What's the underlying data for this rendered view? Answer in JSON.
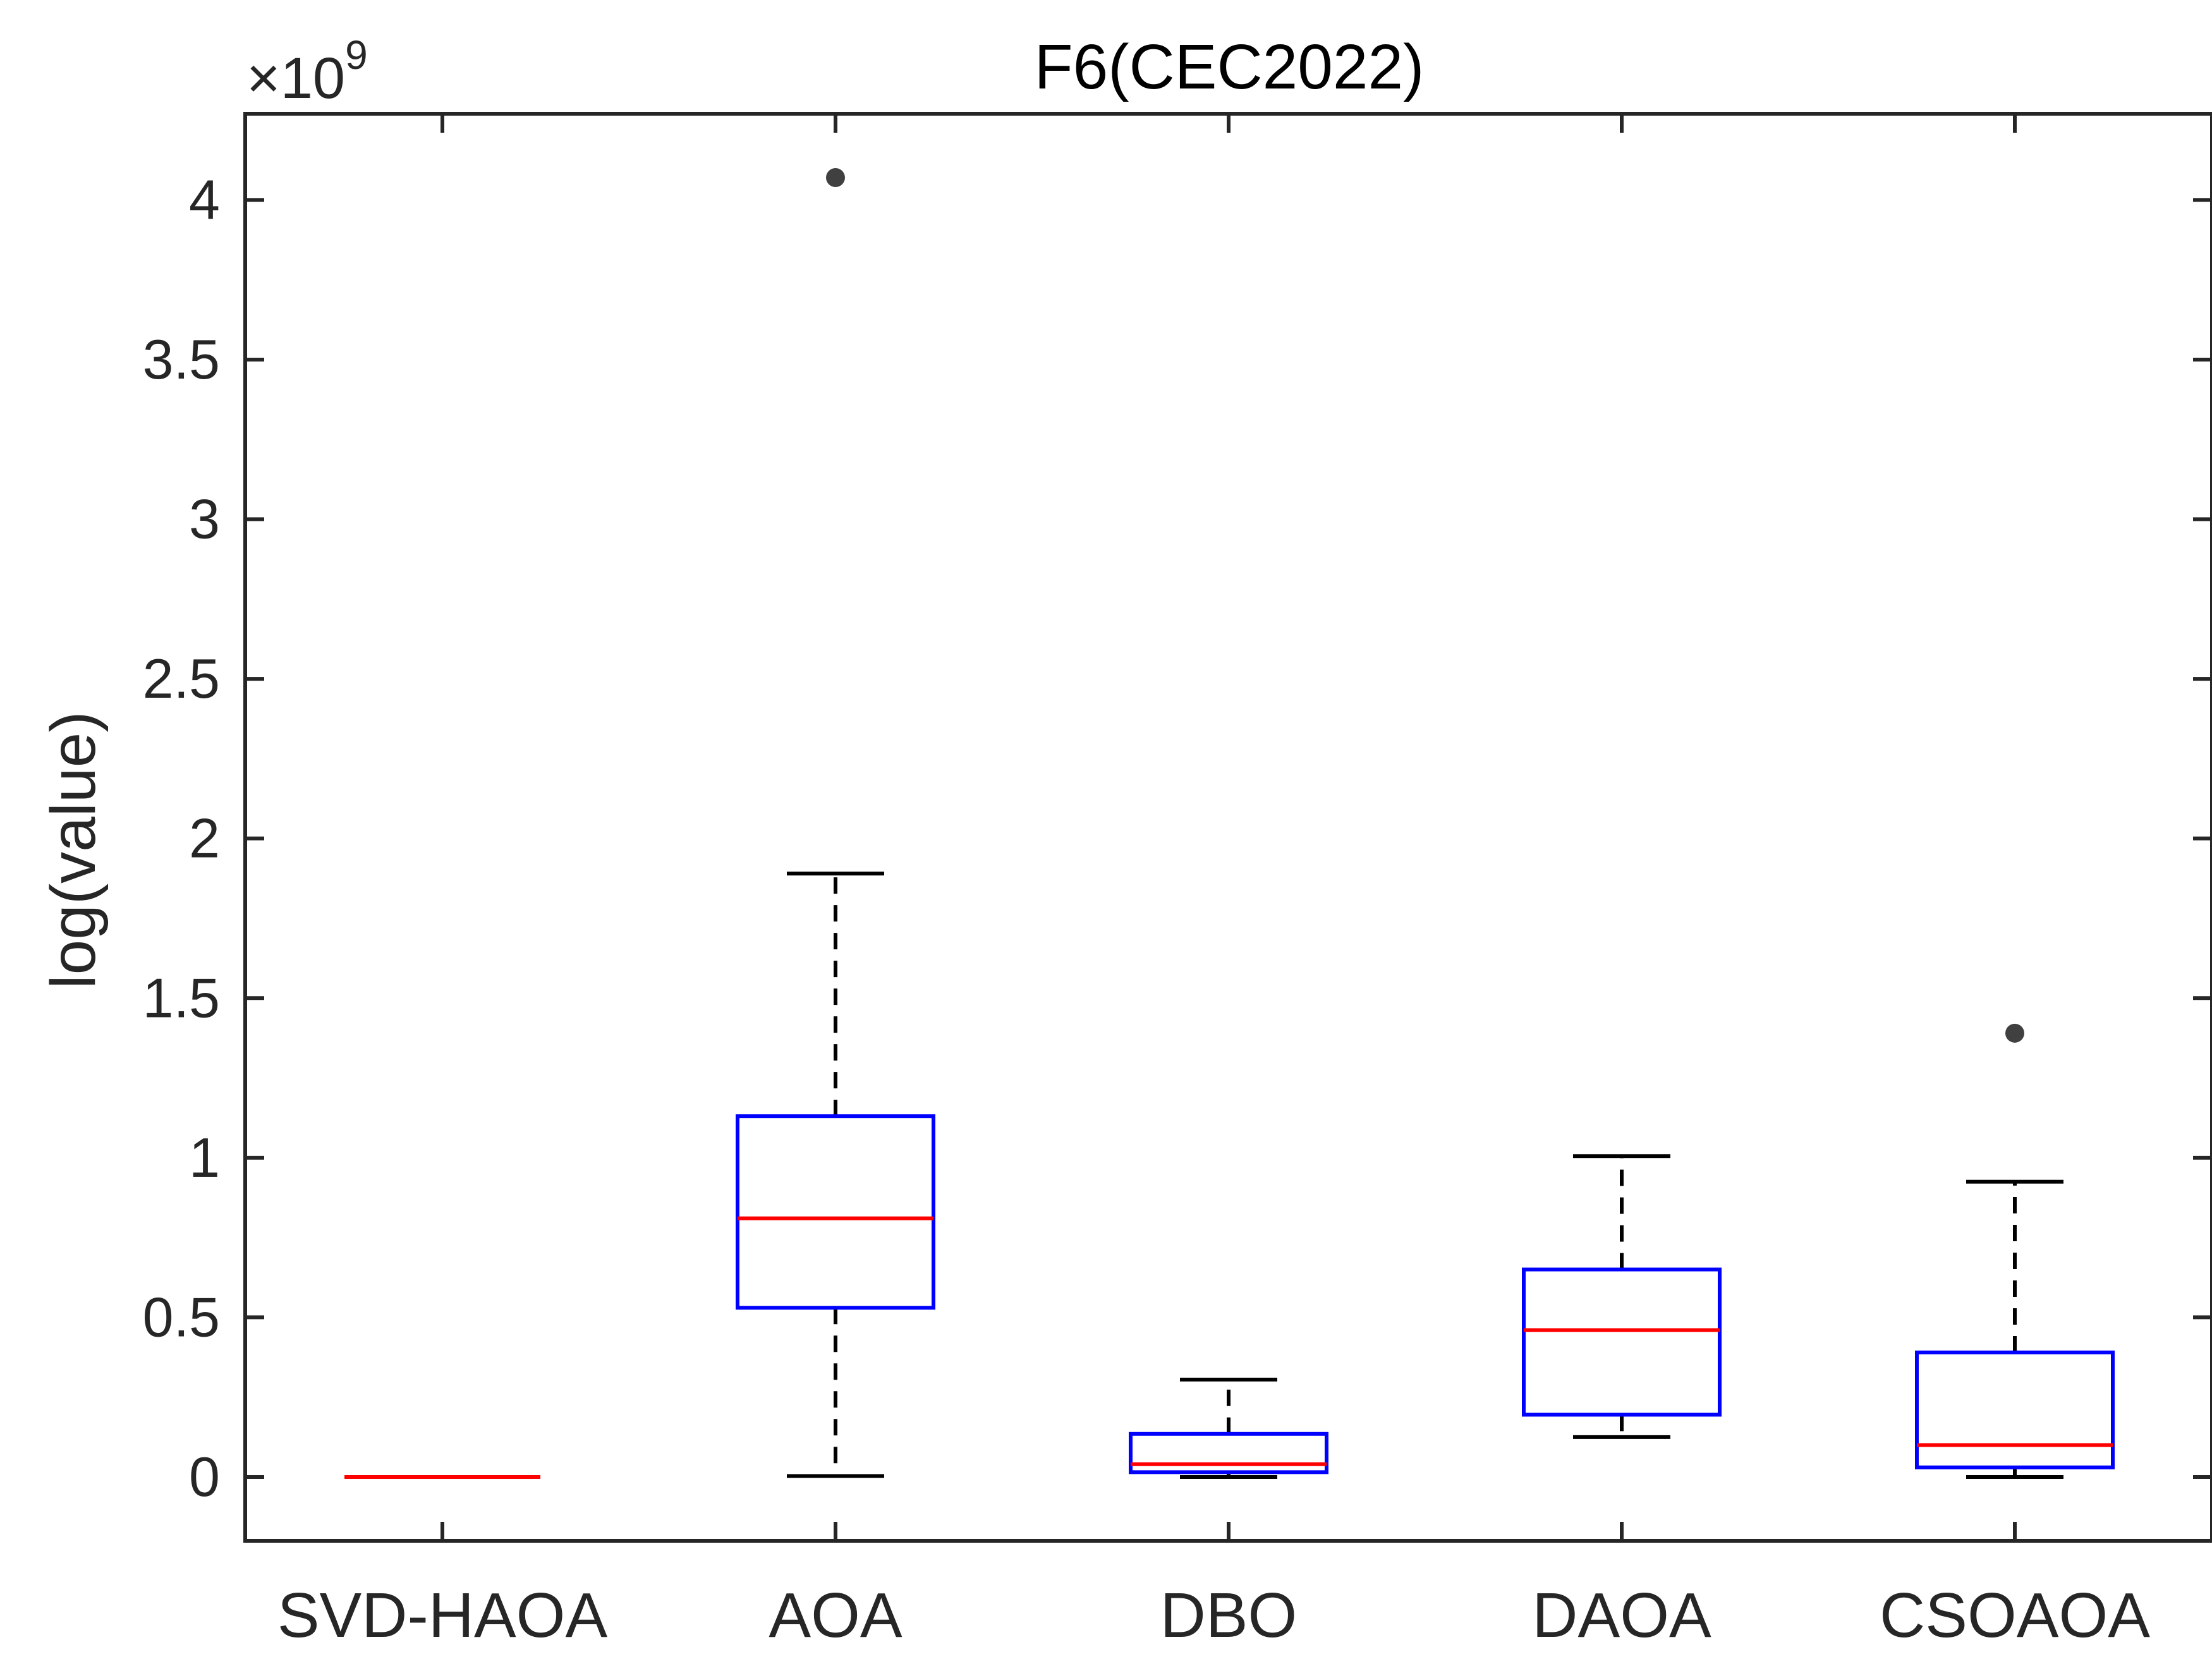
{
  "chart_data": {
    "type": "box",
    "title": "F6(CEC2022)",
    "ylabel": "log(value)",
    "xlabel": "",
    "y_exponent_label": "×10",
    "y_exponent_power": "9",
    "ylim": [
      -0.2,
      4.27
    ],
    "yticks": [
      0,
      0.5,
      1,
      1.5,
      2,
      2.5,
      3,
      3.5,
      4
    ],
    "ytick_labels": [
      "0",
      "0.5",
      "1",
      "1.5",
      "2",
      "2.5",
      "3",
      "3.5",
      "4"
    ],
    "grid": false,
    "unit_scale": "1e9",
    "categories": [
      "SVD-HAOA",
      "AOA",
      "DBO",
      "DAOA",
      "CSOAOA"
    ],
    "boxes": [
      {
        "name": "SVD-HAOA",
        "whisker_low": 0.0,
        "q1": 0.0,
        "median": 0.0,
        "q3": 0.0,
        "whisker_high": 0.0,
        "outliers": []
      },
      {
        "name": "AOA",
        "whisker_low": 0.003,
        "q1": 0.53,
        "median": 0.81,
        "q3": 1.13,
        "whisker_high": 1.89,
        "outliers": [
          4.07
        ]
      },
      {
        "name": "DBO",
        "whisker_low": 0.0,
        "q1": 0.015,
        "median": 0.04,
        "q3": 0.135,
        "whisker_high": 0.305,
        "outliers": []
      },
      {
        "name": "DAOA",
        "whisker_low": 0.125,
        "q1": 0.195,
        "median": 0.46,
        "q3": 0.65,
        "whisker_high": 1.005,
        "outliers": []
      },
      {
        "name": "CSOAOA",
        "whisker_low": 0.0,
        "q1": 0.03,
        "median": 0.1,
        "q3": 0.39,
        "whisker_high": 0.925,
        "outliers": [
          1.39
        ]
      }
    ],
    "colors": {
      "box": "#0000ff",
      "median": "#ff0000",
      "whisker": "#000000",
      "outlier": "#404040",
      "axis": "#262626"
    }
  }
}
